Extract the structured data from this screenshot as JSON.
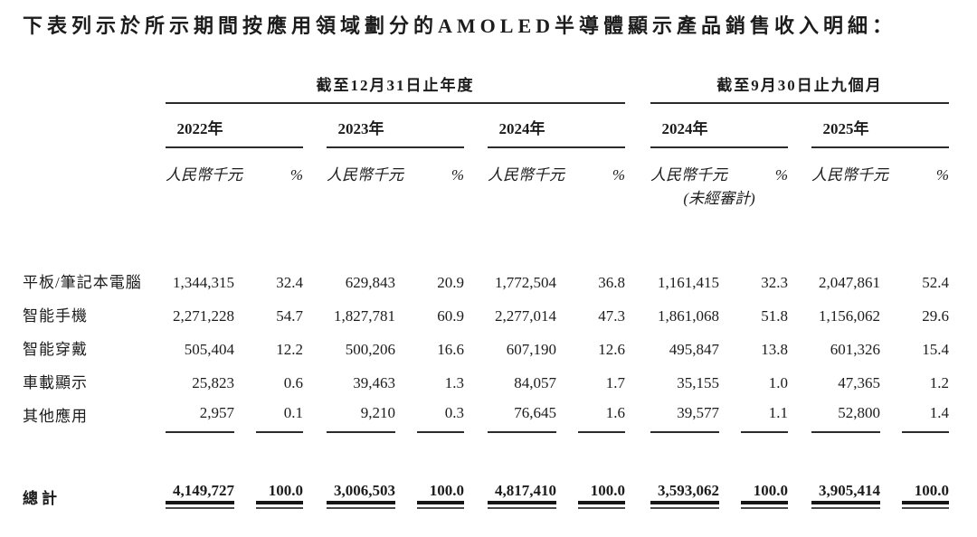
{
  "title": "下表列示於所示期間按應用領域劃分的AMOLED半導體顯示產品銷售收入明細：",
  "table": {
    "group_headers": [
      {
        "label": "截至12月31日止年度"
      },
      {
        "label": "截至9月30日止九個月"
      }
    ],
    "year_headers": [
      "2022年",
      "2023年",
      "2024年",
      "2024年",
      "2025年"
    ],
    "unit_label": "人民幣千元",
    "pct_label": "%",
    "unaudited_note": "(未經審計)",
    "rows": [
      {
        "label": "平板/筆記本電腦",
        "values": [
          "1,344,315",
          "32.4",
          "629,843",
          "20.9",
          "1,772,504",
          "36.8",
          "1,161,415",
          "32.3",
          "2,047,861",
          "52.4"
        ]
      },
      {
        "label": "智能手機",
        "values": [
          "2,271,228",
          "54.7",
          "1,827,781",
          "60.9",
          "2,277,014",
          "47.3",
          "1,861,068",
          "51.8",
          "1,156,062",
          "29.6"
        ]
      },
      {
        "label": "智能穿戴",
        "values": [
          "505,404",
          "12.2",
          "500,206",
          "16.6",
          "607,190",
          "12.6",
          "495,847",
          "13.8",
          "601,326",
          "15.4"
        ]
      },
      {
        "label": "車載顯示",
        "values": [
          "25,823",
          "0.6",
          "39,463",
          "1.3",
          "84,057",
          "1.7",
          "35,155",
          "1.0",
          "47,365",
          "1.2"
        ]
      },
      {
        "label": "其他應用",
        "values": [
          "2,957",
          "0.1",
          "9,210",
          "0.3",
          "76,645",
          "1.6",
          "39,577",
          "1.1",
          "52,800",
          "1.4"
        ]
      }
    ],
    "total": {
      "label": "總計",
      "values": [
        "4,149,727",
        "100.0",
        "3,006,503",
        "100.0",
        "4,817,410",
        "100.0",
        "3,593,062",
        "100.0",
        "3,905,414",
        "100.0"
      ]
    }
  }
}
